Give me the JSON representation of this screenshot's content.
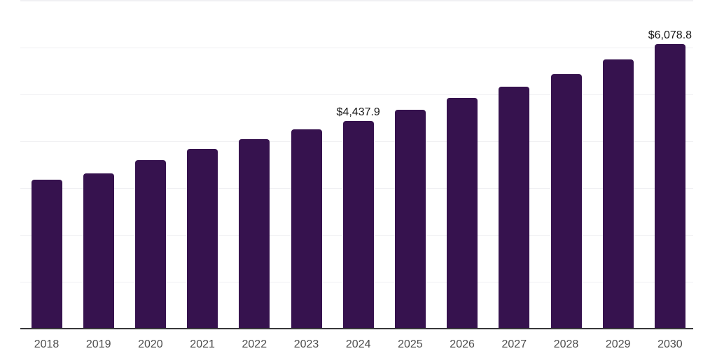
{
  "chart_data": {
    "type": "bar",
    "title": "",
    "xlabel": "",
    "ylabel": "",
    "categories": [
      "2018",
      "2019",
      "2020",
      "2021",
      "2022",
      "2023",
      "2024",
      "2025",
      "2026",
      "2027",
      "2028",
      "2029",
      "2030"
    ],
    "values": [
      3180,
      3320,
      3600,
      3840,
      4050,
      4260,
      4437.9,
      4670,
      4920,
      5170,
      5440,
      5750,
      6078.8
    ],
    "data_labels": [
      null,
      null,
      null,
      null,
      null,
      null,
      "$4,437.9",
      null,
      null,
      null,
      null,
      null,
      "$6,078.8"
    ],
    "ylim": [
      0,
      7000
    ],
    "gridline_interval": 1000,
    "grid": true,
    "legend": false,
    "y_axis_labels_visible": false,
    "colors": {
      "bar": "#36124E",
      "axis_line": "#38383a",
      "gridline": "#f0f0f3",
      "tick_label": "#4d4d4d",
      "value_label": "#161616",
      "background": "#ffffff"
    }
  }
}
